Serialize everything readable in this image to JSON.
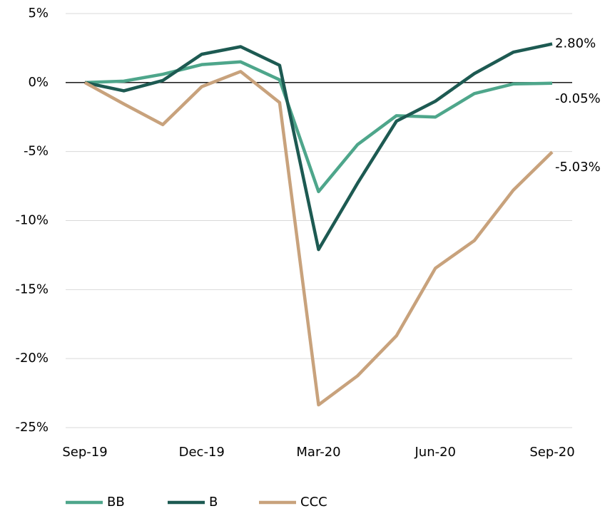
{
  "chart_data": {
    "type": "line",
    "categories": [
      "Sep-19",
      null,
      null,
      "Dec-19",
      null,
      null,
      "Mar-20",
      null,
      null,
      "Jun-20",
      null,
      null,
      "Sep-20"
    ],
    "series": [
      {
        "name": "BB",
        "color": "#4ea68b",
        "values": [
          0,
          0.1,
          0.6,
          1.3,
          1.5,
          0.2,
          -7.9,
          -4.5,
          -2.4,
          -2.5,
          -0.8,
          -0.1,
          -0.05
        ],
        "value_labels": [
          null,
          null,
          null,
          null,
          null,
          null,
          null,
          null,
          null,
          null,
          null,
          null,
          "-0.05%"
        ]
      },
      {
        "name": "B",
        "color": "#1d5a52",
        "values": [
          0,
          -0.6,
          0.15,
          2.05,
          2.6,
          1.25,
          -12.1,
          -7.3,
          -2.8,
          -1.35,
          0.65,
          2.2,
          2.8
        ],
        "value_labels": [
          null,
          null,
          null,
          null,
          null,
          null,
          null,
          null,
          null,
          null,
          null,
          null,
          "2.80%"
        ]
      },
      {
        "name": "CCC",
        "color": "#c8a27c",
        "values": [
          0,
          -1.55,
          -3.05,
          -0.3,
          0.8,
          -1.45,
          -23.35,
          -21.25,
          -18.35,
          -13.45,
          -11.45,
          -7.8,
          -5.03
        ],
        "value_labels": [
          null,
          null,
          null,
          null,
          null,
          null,
          null,
          null,
          null,
          null,
          null,
          null,
          "-5.03%"
        ]
      }
    ],
    "ylim": [
      -25,
      5
    ],
    "yticks": [
      {
        "value": -25,
        "label": "-25%"
      },
      {
        "value": -20,
        "label": "-20%"
      },
      {
        "value": -15,
        "label": "-15%"
      },
      {
        "value": -10,
        "label": "-10%"
      },
      {
        "value": -5,
        "label": "-5%"
      },
      {
        "value": 0,
        "label": "0%"
      },
      {
        "value": 5,
        "label": "5%"
      }
    ],
    "grid": true,
    "legend": "bottom"
  }
}
